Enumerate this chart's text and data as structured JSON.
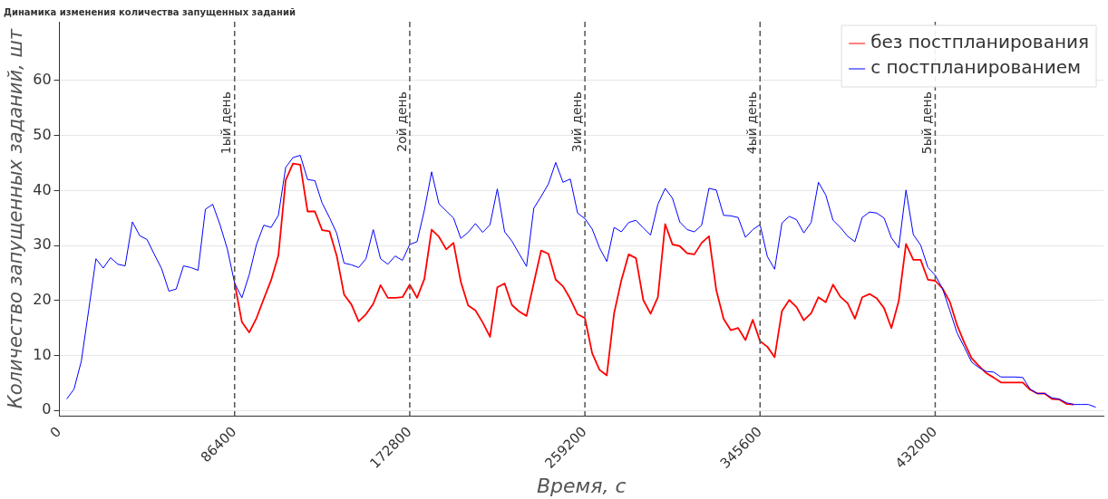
{
  "chart_data": {
    "type": "line",
    "title": "Динамика изменения количества запущенных заданий",
    "xlabel": "Время, с",
    "ylabel": "Количество запущенных заданий, шт",
    "x": [
      3600,
      7200,
      10800,
      14400,
      18000,
      21600,
      25200,
      28800,
      32400,
      36000,
      39600,
      43200,
      46800,
      50400,
      54000,
      57600,
      61200,
      64800,
      68400,
      72000,
      75600,
      79200,
      82800,
      86400,
      90000,
      93600,
      97200,
      100800,
      104400,
      108000,
      111600,
      115200,
      118800,
      122400,
      126000,
      129600,
      133200,
      136800,
      140400,
      144000,
      147600,
      151200,
      154800,
      158400,
      162000,
      165600,
      169200,
      172800,
      176400,
      180000,
      183600,
      187200,
      190800,
      194400,
      198000,
      201600,
      205200,
      208800,
      212400,
      216000,
      219600,
      223200,
      226800,
      230400,
      234000,
      237600,
      241200,
      244800,
      248400,
      252000,
      255600,
      259200,
      262800,
      266400,
      270000,
      273600,
      277200,
      280800,
      284400,
      288000,
      291600,
      295200,
      298800,
      302400,
      306000,
      309600,
      313200,
      316800,
      320400,
      324000,
      327600,
      331200,
      334800,
      338400,
      342000,
      345600,
      349200,
      352800,
      356400,
      360000,
      363600,
      367200,
      370800,
      374400,
      378000,
      381600,
      385200,
      388800,
      392400,
      396000,
      399600,
      403200,
      406800,
      410400,
      414000,
      417600,
      421200,
      424800,
      428400,
      432000,
      435600,
      439200,
      442800,
      446400,
      450000,
      453600,
      457200,
      460800,
      464400,
      468000,
      471600,
      475200,
      478800,
      482400,
      486000,
      489600,
      493200,
      496800,
      500400,
      504000,
      507600,
      511200
    ],
    "series": [
      {
        "name": "без постпланирования",
        "color": "#ff0000",
        "values": [
          null,
          null,
          null,
          null,
          null,
          null,
          null,
          null,
          null,
          null,
          null,
          null,
          null,
          null,
          null,
          null,
          null,
          null,
          null,
          null,
          null,
          null,
          null,
          23.2,
          16.1,
          14.2,
          16.8,
          20.3,
          23.7,
          28.2,
          41.9,
          44.9,
          44.7,
          36.2,
          36.2,
          32.8,
          32.6,
          28.1,
          21.1,
          19.3,
          16.2,
          17.5,
          19.4,
          22.8,
          20.5,
          20.5,
          20.6,
          22.9,
          20.5,
          23.9,
          32.9,
          31.6,
          29.3,
          30.5,
          23.4,
          19.1,
          18.2,
          16.0,
          13.4,
          22.4,
          23.1,
          19.2,
          18.0,
          17.2,
          23.2,
          29.1,
          28.5,
          23.8,
          22.6,
          20.3,
          17.5,
          16.8,
          10.4,
          7.4,
          6.4,
          17.7,
          23.7,
          28.4,
          27.7,
          20.1,
          17.6,
          20.6,
          33.9,
          30.2,
          29.9,
          28.6,
          28.4,
          30.5,
          31.7,
          21.9,
          16.7,
          14.6,
          15.0,
          12.8,
          16.5,
          12.6,
          11.6,
          9.7,
          18.1,
          20.1,
          18.8,
          16.4,
          17.7,
          20.6,
          19.7,
          22.9,
          20.7,
          19.5,
          16.7,
          20.6,
          21.2,
          20.4,
          18.6,
          15.0,
          19.9,
          30.3,
          27.4,
          27.4,
          23.8,
          23.6,
          22.2,
          19.8,
          15.5,
          12.3,
          9.5,
          8.1,
          6.8,
          6.0,
          5.1,
          5.1,
          5.1,
          5.1,
          3.8,
          3.1,
          3.1,
          2.1,
          2.0,
          1.2,
          1.1,
          null,
          null,
          null
        ]
      },
      {
        "name": "с постпланированием",
        "color": "#0000ff",
        "values": [
          2.1,
          3.9,
          9.0,
          18.2,
          27.6,
          25.9,
          27.8,
          26.6,
          26.3,
          34.3,
          31.8,
          31.1,
          28.4,
          25.8,
          21.7,
          22.1,
          26.3,
          26.0,
          25.5,
          36.6,
          37.5,
          33.8,
          29.4,
          23.2,
          20.5,
          24.7,
          30.2,
          33.7,
          33.3,
          35.5,
          44.2,
          46.0,
          46.4,
          42.0,
          41.8,
          37.7,
          35.1,
          32.2,
          26.8,
          26.5,
          26.0,
          27.6,
          32.9,
          27.6,
          26.6,
          28.1,
          27.3,
          30.2,
          30.7,
          36.4,
          43.4,
          37.6,
          36.3,
          35.0,
          31.3,
          32.4,
          34.0,
          32.4,
          33.8,
          40.3,
          32.5,
          30.8,
          28.5,
          26.2,
          36.8,
          38.9,
          41.2,
          45.1,
          41.5,
          42.1,
          35.9,
          34.9,
          33.0,
          29.6,
          27.1,
          33.3,
          32.5,
          34.2,
          34.6,
          33.2,
          31.9,
          37.5,
          40.4,
          38.6,
          34.3,
          32.9,
          32.5,
          33.7,
          40.4,
          40.1,
          35.5,
          35.4,
          35.1,
          31.5,
          32.9,
          33.8,
          28.0,
          25.7,
          34.1,
          35.3,
          34.7,
          32.3,
          34.2,
          41.5,
          39.2,
          34.6,
          33.3,
          31.7,
          30.7,
          35.1,
          36.1,
          35.9,
          35.0,
          31.4,
          29.6,
          40.1,
          32.0,
          30.1,
          26.0,
          24.6,
          22.2,
          18.2,
          14.1,
          11.5,
          8.8,
          7.8,
          7.1,
          7.0,
          6.1,
          6.1,
          6.1,
          6.0,
          3.9,
          3.1,
          3.1,
          2.3,
          2.1,
          1.4,
          1.1,
          1.1,
          1.1,
          0.6
        ]
      }
    ],
    "xlim": [
      0,
      515000
    ],
    "xticks": [
      0,
      86400,
      172800,
      259200,
      345600,
      432000
    ],
    "ylim": [
      -1,
      70.7
    ],
    "yticks": [
      0,
      10,
      20,
      30,
      40,
      50,
      60
    ],
    "ref_lines": [
      {
        "axis": "x",
        "value": 86400,
        "label": "1ый день",
        "color": "#555555",
        "line_style": "dashed"
      },
      {
        "axis": "x",
        "value": 172800,
        "label": "2ой день",
        "color": "#555555",
        "line_style": "dashed"
      },
      {
        "axis": "x",
        "value": 259200,
        "label": "3ий день",
        "color": "#555555",
        "line_style": "dashed"
      },
      {
        "axis": "x",
        "value": 345600,
        "label": "4ый день",
        "color": "#555555",
        "line_style": "dashed"
      },
      {
        "axis": "x",
        "value": 432000,
        "label": "5ый день",
        "color": "#555555",
        "line_style": "dashed"
      }
    ],
    "grid": "y",
    "legend": "top right",
    "marker": "none",
    "line_style": "solid"
  }
}
